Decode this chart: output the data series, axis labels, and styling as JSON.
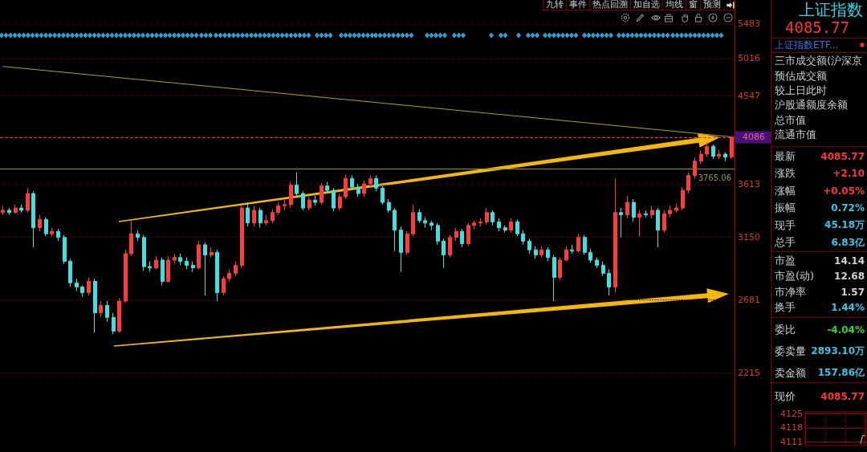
{
  "chart_data": [
    {
      "type": "candlestick",
      "categories": [
        null,
        null,
        null,
        null,
        null,
        null,
        null,
        null,
        null,
        null,
        null,
        null,
        null,
        null,
        null,
        null,
        null,
        null,
        null,
        null,
        null,
        null,
        null,
        null,
        null,
        null,
        null,
        null,
        null,
        null,
        null,
        null,
        null,
        null,
        null,
        null,
        null,
        null,
        null,
        null,
        null,
        null,
        null,
        null,
        null,
        null,
        null,
        null,
        null,
        null,
        null,
        null,
        null,
        null,
        null,
        null,
        null,
        null,
        null,
        null,
        null,
        null,
        null,
        null,
        null,
        null,
        null,
        null,
        null,
        null,
        null,
        null,
        null,
        null,
        null,
        null,
        null,
        null,
        null,
        null,
        null,
        null,
        null,
        null,
        null,
        null,
        null,
        null,
        null,
        null,
        null,
        null,
        null,
        null,
        null,
        null,
        null,
        null,
        null,
        null,
        null,
        null,
        null,
        null,
        null,
        null,
        null,
        null,
        null,
        null,
        null,
        null,
        null,
        null,
        null,
        null,
        null,
        null,
        null,
        null
      ],
      "series": [
        {
          "type": "candlestick",
          "ohlc": [
            [
              3360,
              3420,
              3340,
              3380
            ],
            [
              3380,
              3400,
              3340,
              3360
            ],
            [
              3360,
              3430,
              3350,
              3400
            ],
            [
              3400,
              3430,
              3360,
              3380
            ],
            [
              3380,
              3580,
              3360,
              3530
            ],
            [
              3530,
              3550,
              3070,
              3230
            ],
            [
              3230,
              3340,
              3200,
              3300
            ],
            [
              3300,
              3320,
              3160,
              3180
            ],
            [
              3180,
              3230,
              3160,
              3200
            ],
            [
              3200,
              3220,
              3120,
              3150
            ],
            [
              3150,
              3170,
              2940,
              2960
            ],
            [
              2960,
              2980,
              2770,
              2800
            ],
            [
              2800,
              2830,
              2740,
              2770
            ],
            [
              2770,
              2780,
              2700,
              2730
            ],
            [
              2730,
              2840,
              2710,
              2810
            ],
            [
              2810,
              2830,
              2460,
              2590
            ],
            [
              2590,
              2670,
              2560,
              2640
            ],
            [
              2640,
              2670,
              2530,
              2560
            ],
            [
              2560,
              2590,
              2450,
              2470
            ],
            [
              2470,
              2690,
              2460,
              2670
            ],
            [
              2670,
              3050,
              2660,
              3020
            ],
            [
              3020,
              3290,
              3000,
              3180
            ],
            [
              3180,
              3210,
              3120,
              3150
            ],
            [
              3150,
              3170,
              2890,
              2920
            ],
            [
              2920,
              2960,
              2880,
              2910
            ],
            [
              2910,
              3000,
              2900,
              2970
            ],
            [
              2970,
              2990,
              2780,
              2810
            ],
            [
              2810,
              3000,
              2800,
              2970
            ],
            [
              2970,
              3020,
              2940,
              2990
            ],
            [
              2990,
              3020,
              2930,
              2960
            ],
            [
              2960,
              2990,
              2900,
              2930
            ],
            [
              2930,
              2960,
              2880,
              2910
            ],
            [
              2910,
              3120,
              2900,
              3090
            ],
            [
              3090,
              3110,
              2710,
              3010
            ],
            [
              3010,
              3070,
              2990,
              3030
            ],
            [
              3030,
              3050,
              2670,
              2730
            ],
            [
              2730,
              2850,
              2710,
              2830
            ],
            [
              2830,
              2900,
              2810,
              2870
            ],
            [
              2870,
              2960,
              2850,
              2930
            ],
            [
              2930,
              3430,
              2910,
              3400
            ],
            [
              3400,
              3450,
              3240,
              3270
            ],
            [
              3270,
              3420,
              3240,
              3380
            ],
            [
              3380,
              3400,
              3230,
              3270
            ],
            [
              3270,
              3340,
              3250,
              3290
            ],
            [
              3290,
              3390,
              3270,
              3360
            ],
            [
              3360,
              3450,
              3340,
              3420
            ],
            [
              3420,
              3480,
              3380,
              3430
            ],
            [
              3430,
              3640,
              3400,
              3610
            ],
            [
              3610,
              3730,
              3490,
              3530
            ],
            [
              3530,
              3550,
              3380,
              3400
            ],
            [
              3400,
              3500,
              3380,
              3470
            ],
            [
              3470,
              3510,
              3420,
              3450
            ],
            [
              3450,
              3630,
              3430,
              3600
            ],
            [
              3600,
              3640,
              3530,
              3560
            ],
            [
              3560,
              3580,
              3370,
              3400
            ],
            [
              3400,
              3530,
              3380,
              3500
            ],
            [
              3500,
              3710,
              3480,
              3670
            ],
            [
              3670,
              3700,
              3560,
              3590
            ],
            [
              3590,
              3620,
              3500,
              3530
            ],
            [
              3530,
              3650,
              3500,
              3620
            ],
            [
              3620,
              3700,
              3590,
              3670
            ],
            [
              3670,
              3700,
              3550,
              3580
            ],
            [
              3580,
              3600,
              3430,
              3450
            ],
            [
              3450,
              3480,
              3360,
              3380
            ],
            [
              3380,
              3400,
              3040,
              3210
            ],
            [
              3210,
              3240,
              2880,
              3030
            ],
            [
              3030,
              3200,
              3010,
              3180
            ],
            [
              3180,
              3430,
              3160,
              3360
            ],
            [
              3360,
              3390,
              3270,
              3290
            ],
            [
              3290,
              3320,
              3230,
              3270
            ],
            [
              3270,
              3290,
              3210,
              3250
            ],
            [
              3250,
              3270,
              3090,
              3120
            ],
            [
              3120,
              3140,
              2910,
              3010
            ],
            [
              3010,
              3170,
              2990,
              3150
            ],
            [
              3150,
              3230,
              3120,
              3200
            ],
            [
              3200,
              3220,
              3070,
              3100
            ],
            [
              3100,
              3270,
              3080,
              3250
            ],
            [
              3250,
              3290,
              3220,
              3270
            ],
            [
              3270,
              3310,
              3240,
              3280
            ],
            [
              3280,
              3400,
              3260,
              3360
            ],
            [
              3360,
              3380,
              3250,
              3280
            ],
            [
              3280,
              3310,
              3200,
              3230
            ],
            [
              3230,
              3250,
              3190,
              3210
            ],
            [
              3210,
              3310,
              3190,
              3280
            ],
            [
              3280,
              3300,
              3160,
              3180
            ],
            [
              3180,
              3210,
              3090,
              3120
            ],
            [
              3120,
              3140,
              3020,
              3050
            ],
            [
              3050,
              3080,
              2980,
              3010
            ],
            [
              3010,
              3080,
              2990,
              3050
            ],
            [
              3050,
              3070,
              2960,
              2990
            ],
            [
              2990,
              3010,
              2670,
              2840
            ],
            [
              2840,
              2990,
              2820,
              2970
            ],
            [
              2970,
              3080,
              2960,
              3050
            ],
            [
              3050,
              3090,
              3020,
              3040
            ],
            [
              3040,
              3180,
              3030,
              3150
            ],
            [
              3150,
              3170,
              3010,
              3030
            ],
            [
              3030,
              3060,
              2950,
              2970
            ],
            [
              2970,
              2990,
              2910,
              2930
            ],
            [
              2930,
              2960,
              2850,
              2870
            ],
            [
              2870,
              2900,
              2710,
              2770
            ],
            [
              2770,
              3670,
              2730,
              3360
            ],
            [
              3360,
              3400,
              3150,
              3340
            ],
            [
              3340,
              3510,
              3310,
              3450
            ],
            [
              3450,
              3480,
              3280,
              3320
            ],
            [
              3320,
              3380,
              3160,
              3350
            ],
            [
              3350,
              3380,
              3320,
              3340
            ],
            [
              3340,
              3420,
              3310,
              3380
            ],
            [
              3380,
              3400,
              3070,
              3210
            ],
            [
              3210,
              3380,
              3190,
              3350
            ],
            [
              3350,
              3420,
              3320,
              3380
            ],
            [
              3380,
              3440,
              3360,
              3400
            ],
            [
              3400,
              3590,
              3380,
              3560
            ],
            [
              3560,
              3730,
              3530,
              3700
            ],
            [
              3700,
              3880,
              3670,
              3840
            ],
            [
              3840,
              3950,
              3810,
              3910
            ],
            [
              3910,
              4030,
              3880,
              3990
            ],
            [
              3990,
              4010,
              3860,
              3890
            ],
            [
              3890,
              3950,
              3860,
              3910
            ],
            [
              3910,
              3930,
              3840,
              3880
            ],
            [
              3880,
              4090,
              3860,
              4086
            ]
          ],
          "colors": [
            "#ff3b3b",
            "#3ee0e0",
            "#ff3b3b",
            "#3ee0e0",
            "#ff3b3b",
            "#3ee0e0",
            "#ff3b3b",
            "#3ee0e0",
            "#ff3b3b",
            "#3ee0e0",
            "#3ee0e0",
            "#3ee0e0",
            "#3ee0e0",
            "#3ee0e0",
            "#ff3b3b",
            "#3ee0e0",
            "#ff3b3b",
            "#3ee0e0",
            "#3ee0e0",
            "#ff3b3b",
            "#ff3b3b",
            "#ff3b3b",
            "#3ee0e0",
            "#3ee0e0",
            "#3ee0e0",
            "#ff3b3b",
            "#3ee0e0",
            "#ff3b3b",
            "#ff3b3b",
            "#3ee0e0",
            "#3ee0e0",
            "#3ee0e0",
            "#ff3b3b",
            "#3ee0e0",
            "#ff3b3b",
            "#3ee0e0",
            "#ff3b3b",
            "#ff3b3b",
            "#ff3b3b",
            "#ff3b3b",
            "#3ee0e0",
            "#ff3b3b",
            "#3ee0e0",
            "#ff3b3b",
            "#ff3b3b",
            "#ff3b3b",
            "#ff3b3b",
            "#ff3b3b",
            "#3ee0e0",
            "#3ee0e0",
            "#ff3b3b",
            "#3ee0e0",
            "#ff3b3b",
            "#3ee0e0",
            "#3ee0e0",
            "#ff3b3b",
            "#ff3b3b",
            "#3ee0e0",
            "#3ee0e0",
            "#ff3b3b",
            "#ff3b3b",
            "#3ee0e0",
            "#3ee0e0",
            "#3ee0e0",
            "#3ee0e0",
            "#3ee0e0",
            "#ff3b3b",
            "#ff3b3b",
            "#3ee0e0",
            "#3ee0e0",
            "#3ee0e0",
            "#3ee0e0",
            "#3ee0e0",
            "#ff3b3b",
            "#ff3b3b",
            "#3ee0e0",
            "#ff3b3b",
            "#ff3b3b",
            "#ff3b3b",
            "#ff3b3b",
            "#3ee0e0",
            "#3ee0e0",
            "#3ee0e0",
            "#ff3b3b",
            "#3ee0e0",
            "#3ee0e0",
            "#3ee0e0",
            "#3ee0e0",
            "#ff3b3b",
            "#3ee0e0",
            "#3ee0e0",
            "#ff3b3b",
            "#ff3b3b",
            "#3ee0e0",
            "#ff3b3b",
            "#3ee0e0",
            "#3ee0e0",
            "#3ee0e0",
            "#3ee0e0",
            "#3ee0e0",
            "#ff3b3b",
            "#3ee0e0",
            "#ff3b3b",
            "#3ee0e0",
            "#ff3b3b",
            "#3ee0e0",
            "#ff3b3b",
            "#3ee0e0",
            "#ff3b3b",
            "#ff3b3b",
            "#ff3b3b",
            "#ff3b3b",
            "#ff3b3b",
            "#ff3b3b",
            "#ff3b3b",
            "#ff3b3b",
            "#3ee0e0",
            "#ff3b3b",
            "#3ee0e0",
            "#ff3b3b"
          ]
        },
        {
          "type": "line",
          "color": "#a8a800",
          "values": [
            4910,
            null,
            null,
            null,
            null,
            null,
            null,
            null,
            null,
            null,
            null,
            null,
            null,
            null,
            null,
            null,
            null,
            null,
            null,
            null,
            null,
            null,
            null,
            null,
            null,
            null,
            null,
            null,
            null,
            null,
            null,
            null,
            null,
            null,
            null,
            null,
            null,
            null,
            null,
            null,
            null,
            null,
            null,
            null,
            null,
            null,
            null,
            null,
            null,
            null,
            null,
            null,
            null,
            null,
            null,
            null,
            null,
            null,
            null,
            null,
            null,
            null,
            null,
            null,
            null,
            null,
            null,
            null,
            null,
            null,
            null,
            null,
            null,
            null,
            null,
            null,
            null,
            null,
            null,
            null,
            null,
            null,
            null,
            null,
            null,
            null,
            null,
            null,
            null,
            null,
            null,
            null,
            null,
            null,
            null,
            null,
            null,
            null,
            null,
            null,
            null,
            null,
            null,
            null,
            null,
            null,
            null,
            null,
            null,
            null,
            null,
            null,
            null,
            null,
            null,
            null,
            null,
            null,
            null,
            4090
          ]
        }
      ],
      "ylim": [
        1835,
        5690
      ],
      "yticks": [
        5483,
        5016,
        4547,
        3613,
        3150,
        2681,
        2215
      ],
      "log": true,
      "grid": "y",
      "ref_lines": [
        {
          "axis": "y",
          "value": 4086,
          "label": "4086",
          "color": "#ff3333",
          "line_style": "dashed"
        },
        {
          "axis": "y",
          "value": 3765.06,
          "label": "3765.06",
          "color": "#9a9a00",
          "line_style": "solid"
        }
      ]
    },
    {
      "type": "other",
      "annotations": [
        "九转",
        "事件",
        "热点回溯",
        "加自选",
        "均线",
        "窗",
        "预测"
      ]
    },
    {
      "type": "other",
      "title": "上证指数",
      "subtitle": "4085.77",
      "annotations": [
        "上证指数ETF..."
      ],
      "categories": [
        "三市成交额(沪深京",
        "预估成交额",
        "较上日此时",
        "沪股通额度余额",
        "总市值",
        "流通市值",
        "最新",
        "涨跌",
        "涨幅",
        "振幅",
        "现手",
        "总手",
        "市盈",
        "市盈(动)",
        "市净率",
        "换手",
        "委比",
        "委卖量",
        "卖金额",
        "现价"
      ],
      "value_labels": [
        null,
        null,
        null,
        null,
        null,
        null,
        "4085.77",
        "+2.10",
        "+0.05%",
        "0.72%",
        "45.18万",
        "6.83亿",
        "14.14",
        "12.68",
        "1.57",
        "1.44%",
        "-4.04%",
        "2893.10万",
        "157.86亿",
        "4085.77"
      ],
      "colors": [
        null,
        null,
        null,
        null,
        null,
        null,
        "#ff3333",
        "#ff3333",
        "#ff3333",
        "#2fc8e8",
        "#2fc8e8",
        "#2fc8e8",
        "#d0d0d0",
        "#d0d0d0",
        "#d0d0d0",
        "#2fc8e8",
        "#22dd22",
        "#2fc8e8",
        "#2fc8e8",
        "#ff3333"
      ]
    },
    {
      "type": "line",
      "categories": [
        null,
        null,
        null,
        null,
        null,
        null,
        null,
        null,
        null,
        null,
        null,
        null,
        null,
        null,
        null,
        null,
        null,
        null,
        null,
        null,
        null,
        null,
        null,
        null,
        null,
        null,
        null,
        null,
        null,
        null
      ],
      "series": [
        {
          "color": "#e8d44d",
          "values": [
            null,
            null,
            null,
            null,
            null,
            null,
            null,
            null,
            null,
            null,
            null,
            null,
            null,
            null,
            null,
            null,
            null,
            null,
            null,
            null,
            null,
            null,
            null,
            null,
            null,
            null,
            null,
            4110,
            4114,
            4114
          ]
        }
      ],
      "ylim": [
        4109,
        4126
      ],
      "yticks": [
        4125,
        4118,
        4111
      ],
      "grid": true
    }
  ]
}
